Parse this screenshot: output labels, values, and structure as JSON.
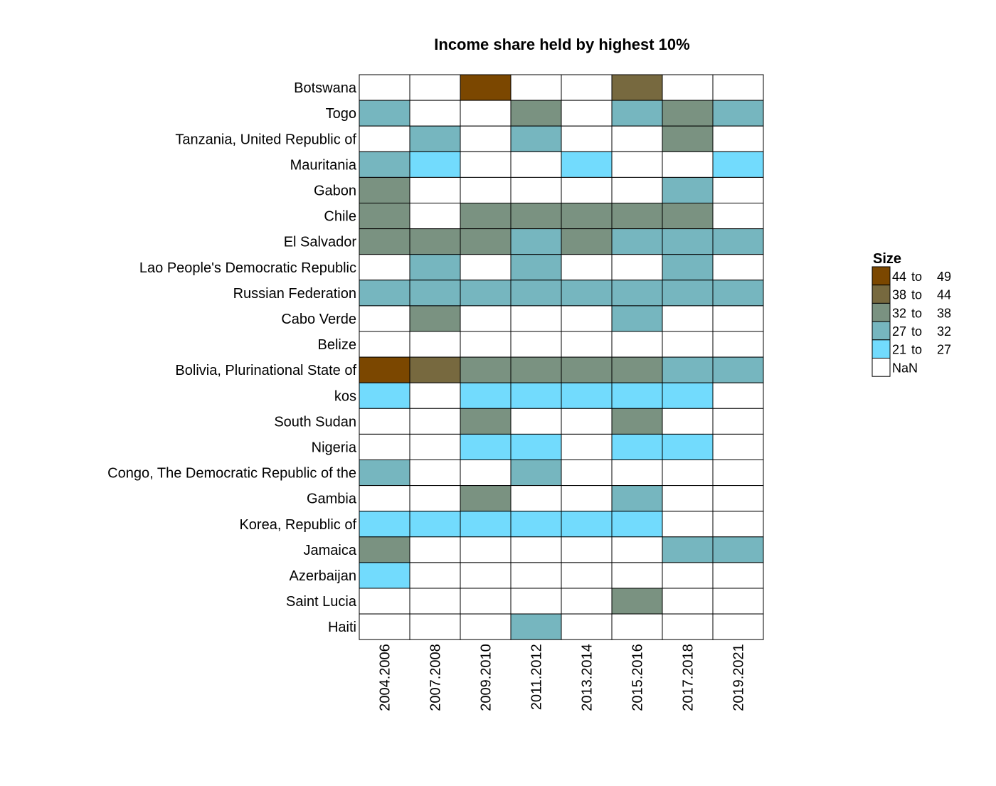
{
  "chart_data": {
    "type": "heatmap",
    "title": "Income share held by highest 10%",
    "xlabel": "",
    "ylabel": "",
    "columns": [
      "2004.2006",
      "2007.2008",
      "2009.2010",
      "2011.2012",
      "2013.2014",
      "2015.2016",
      "2017.2018",
      "2019.2021"
    ],
    "rows": [
      "Botswana",
      "Togo",
      "Tanzania, United Republic of",
      "Mauritania",
      "Gabon",
      "Chile",
      "El Salvador",
      "Lao People's Democratic Republic",
      "Russian Federation",
      "Cabo Verde",
      "Belize",
      "Bolivia, Plurinational State of",
      "kos",
      "South Sudan",
      "Nigeria",
      "Congo, The Democratic Republic of the",
      "Gambia",
      "Korea, Republic of",
      "Jamaica",
      "Azerbaijan",
      "Saint Lucia",
      "Haiti"
    ],
    "cells": [
      [
        null,
        null,
        0,
        null,
        null,
        1,
        null,
        null
      ],
      [
        3,
        null,
        null,
        2,
        null,
        3,
        2,
        3
      ],
      [
        null,
        3,
        null,
        3,
        null,
        null,
        2,
        null
      ],
      [
        3,
        4,
        null,
        null,
        4,
        null,
        null,
        4
      ],
      [
        2,
        null,
        null,
        null,
        null,
        null,
        3,
        null
      ],
      [
        2,
        null,
        2,
        2,
        2,
        2,
        2,
        null
      ],
      [
        2,
        2,
        2,
        3,
        2,
        3,
        3,
        3
      ],
      [
        null,
        3,
        null,
        3,
        null,
        null,
        3,
        null
      ],
      [
        3,
        3,
        3,
        3,
        3,
        3,
        3,
        3
      ],
      [
        null,
        2,
        null,
        null,
        null,
        3,
        null,
        null
      ],
      [
        null,
        null,
        null,
        null,
        null,
        null,
        null,
        null
      ],
      [
        0,
        1,
        2,
        2,
        2,
        2,
        3,
        3
      ],
      [
        4,
        null,
        4,
        4,
        4,
        4,
        4,
        null
      ],
      [
        null,
        null,
        2,
        null,
        null,
        2,
        null,
        null
      ],
      [
        null,
        null,
        4,
        4,
        null,
        4,
        4,
        null
      ],
      [
        3,
        null,
        null,
        3,
        null,
        null,
        null,
        null
      ],
      [
        null,
        null,
        2,
        null,
        null,
        3,
        null,
        null
      ],
      [
        4,
        4,
        4,
        4,
        4,
        4,
        null,
        null
      ],
      [
        2,
        null,
        null,
        null,
        null,
        null,
        3,
        3
      ],
      [
        4,
        null,
        null,
        null,
        null,
        null,
        null,
        null
      ],
      [
        null,
        null,
        null,
        null,
        null,
        2,
        null,
        null
      ],
      [
        null,
        null,
        null,
        3,
        null,
        null,
        null,
        null
      ]
    ],
    "legend": {
      "title": "Size",
      "placement": "right",
      "bins": [
        {
          "from": "44",
          "to": "49",
          "color": "#7b4700"
        },
        {
          "from": "38",
          "to": "44",
          "color": "#77693f"
        },
        {
          "from": "32",
          "to": "38",
          "color": "#7a9281"
        },
        {
          "from": "27",
          "to": "32",
          "color": "#76b6bf"
        },
        {
          "from": "21",
          "to": "27",
          "color": "#72dbfd"
        }
      ],
      "na": {
        "label": "NaN",
        "color": "#ffffff"
      },
      "to_word": "to"
    },
    "grid": true
  }
}
